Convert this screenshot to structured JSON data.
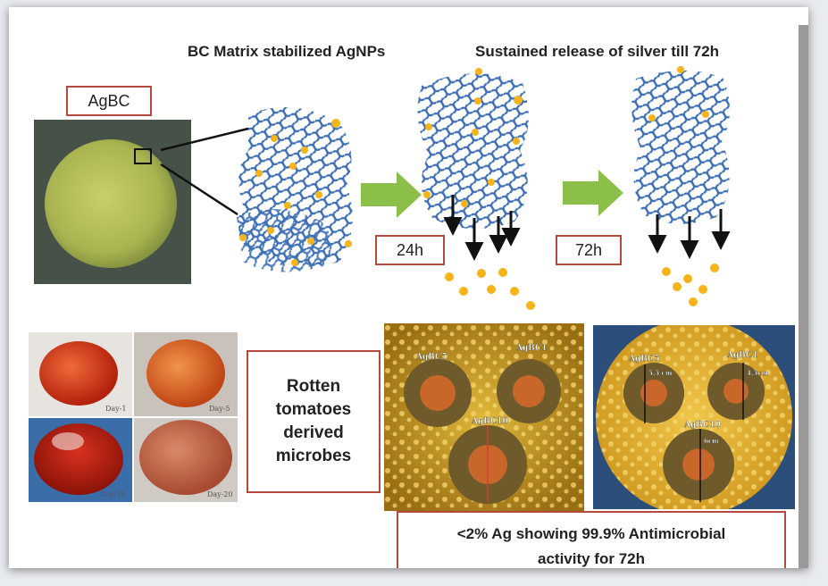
{
  "top_titles": {
    "left": "BC Matrix stabilized AgNPs",
    "right": "Sustained release of silver till 72h"
  },
  "agbc_label": "AgBC",
  "time_labels": [
    "24h",
    "72h"
  ],
  "microbes_box": "Rotten\ntomatoes\nderived\nmicrobes",
  "tomato_day_labels": [
    "Day-1",
    "Day-5",
    "Day-15",
    "Day-20"
  ],
  "plate1_labels": [
    "AgBC5",
    "AgBC1",
    "AgBC10"
  ],
  "plate2_labels": [
    "AgBC5",
    "AgBC1",
    "AgBC10"
  ],
  "plate2_measures": [
    "5.5 cm",
    "4.5cm",
    "6cm"
  ],
  "result_box": "<2% Ag showing 99.9% Antimicrobial\nactivity for 72h",
  "colors": {
    "fiber": "#3d6fb6",
    "nanoparticle": "#f4b41a",
    "arrow": "#8cbf4a",
    "box_border": "#b5483f",
    "plate": "#c99c1f"
  }
}
